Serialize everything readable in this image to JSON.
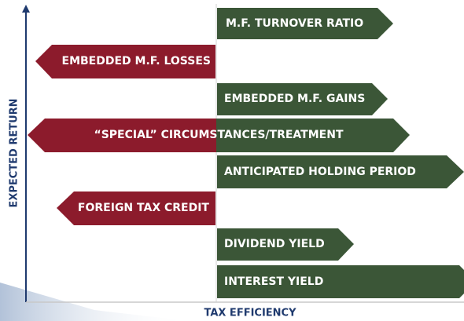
{
  "axes": {
    "y_label": "EXPECTED RETURN",
    "x_label": "TAX EFFICIENCY"
  },
  "items": [
    {
      "label": "M.F. TURNOVER RATIO"
    },
    {
      "label": "EMBEDDED M.F. LOSSES"
    },
    {
      "label": "EMBEDDED M.F. GAINS"
    },
    {
      "label": "“SPECIAL” CIRCUMSTANCES/TREATMENT"
    },
    {
      "label": "ANTICIPATED HOLDING PERIOD"
    },
    {
      "label": "FOREIGN TAX CREDIT"
    },
    {
      "label": "DIVIDEND YIELD"
    },
    {
      "label": "INTEREST YIELD"
    }
  ]
}
